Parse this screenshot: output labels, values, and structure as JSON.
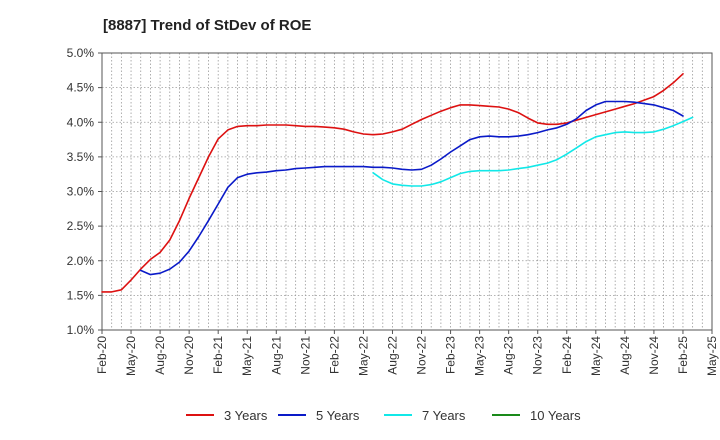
{
  "chart_data": {
    "type": "line",
    "title": "[8887]  Trend of StDev of ROE",
    "xlabel": "",
    "ylabel": "",
    "ylim": [
      1.0,
      5.0
    ],
    "y_ticks": [
      "1.0%",
      "1.5%",
      "2.0%",
      "2.5%",
      "3.0%",
      "3.5%",
      "4.0%",
      "4.5%",
      "5.0%"
    ],
    "y_tick_values": [
      1.0,
      1.5,
      2.0,
      2.5,
      3.0,
      3.5,
      4.0,
      4.5,
      5.0
    ],
    "x_ticks": [
      "Feb-20",
      "May-20",
      "Aug-20",
      "Nov-20",
      "Feb-21",
      "May-21",
      "Aug-21",
      "Nov-21",
      "Feb-22",
      "May-22",
      "Aug-22",
      "Nov-22",
      "Feb-23",
      "May-23",
      "Aug-23",
      "Nov-23",
      "Feb-24",
      "May-24",
      "Aug-24",
      "Nov-24",
      "Feb-25",
      "May-25"
    ],
    "grid": true,
    "legend_position": "bottom",
    "series": [
      {
        "name": "3 Years",
        "color": "#dd1111",
        "points": [
          [
            0,
            1.55
          ],
          [
            1,
            1.55
          ],
          [
            2,
            1.58
          ],
          [
            3,
            1.72
          ],
          [
            4,
            1.88
          ],
          [
            5,
            2.02
          ],
          [
            6,
            2.12
          ],
          [
            7,
            2.3
          ],
          [
            8,
            2.58
          ],
          [
            9,
            2.9
          ],
          [
            10,
            3.2
          ],
          [
            11,
            3.5
          ],
          [
            12,
            3.76
          ],
          [
            13,
            3.89
          ],
          [
            14,
            3.94
          ],
          [
            15,
            3.95
          ],
          [
            16,
            3.95
          ],
          [
            17,
            3.96
          ],
          [
            18,
            3.96
          ],
          [
            19,
            3.96
          ],
          [
            20,
            3.95
          ],
          [
            21,
            3.94
          ],
          [
            22,
            3.94
          ],
          [
            23,
            3.93
          ],
          [
            24,
            3.92
          ],
          [
            25,
            3.9
          ],
          [
            26,
            3.86
          ],
          [
            27,
            3.83
          ],
          [
            28,
            3.82
          ],
          [
            29,
            3.83
          ],
          [
            30,
            3.86
          ],
          [
            31,
            3.9
          ],
          [
            32,
            3.97
          ],
          [
            33,
            4.04
          ],
          [
            34,
            4.1
          ],
          [
            35,
            4.16
          ],
          [
            36,
            4.21
          ],
          [
            37,
            4.25
          ],
          [
            38,
            4.25
          ],
          [
            39,
            4.24
          ],
          [
            40,
            4.23
          ],
          [
            41,
            4.22
          ],
          [
            42,
            4.19
          ],
          [
            43,
            4.14
          ],
          [
            44,
            4.06
          ],
          [
            45,
            3.99
          ],
          [
            46,
            3.97
          ],
          [
            47,
            3.97
          ],
          [
            48,
            3.99
          ],
          [
            49,
            4.03
          ],
          [
            50,
            4.07
          ],
          [
            51,
            4.11
          ],
          [
            52,
            4.15
          ],
          [
            53,
            4.19
          ],
          [
            54,
            4.23
          ],
          [
            55,
            4.27
          ],
          [
            56,
            4.32
          ],
          [
            57,
            4.37
          ],
          [
            58,
            4.46
          ],
          [
            59,
            4.57
          ],
          [
            60,
            4.7
          ]
        ]
      },
      {
        "name": "5 Years",
        "color": "#0a1ac8",
        "points": [
          [
            4,
            1.86
          ],
          [
            5,
            1.8
          ],
          [
            6,
            1.82
          ],
          [
            7,
            1.88
          ],
          [
            8,
            1.98
          ],
          [
            9,
            2.14
          ],
          [
            10,
            2.35
          ],
          [
            11,
            2.58
          ],
          [
            12,
            2.82
          ],
          [
            13,
            3.06
          ],
          [
            14,
            3.2
          ],
          [
            15,
            3.25
          ],
          [
            16,
            3.27
          ],
          [
            17,
            3.28
          ],
          [
            18,
            3.3
          ],
          [
            19,
            3.31
          ],
          [
            20,
            3.33
          ],
          [
            21,
            3.34
          ],
          [
            22,
            3.35
          ],
          [
            23,
            3.36
          ],
          [
            24,
            3.36
          ],
          [
            25,
            3.36
          ],
          [
            26,
            3.36
          ],
          [
            27,
            3.36
          ],
          [
            28,
            3.35
          ],
          [
            29,
            3.35
          ],
          [
            30,
            3.34
          ],
          [
            31,
            3.32
          ],
          [
            32,
            3.31
          ],
          [
            33,
            3.32
          ],
          [
            34,
            3.38
          ],
          [
            35,
            3.47
          ],
          [
            36,
            3.57
          ],
          [
            37,
            3.66
          ],
          [
            38,
            3.75
          ],
          [
            39,
            3.79
          ],
          [
            40,
            3.8
          ],
          [
            41,
            3.79
          ],
          [
            42,
            3.79
          ],
          [
            43,
            3.8
          ],
          [
            44,
            3.82
          ],
          [
            45,
            3.85
          ],
          [
            46,
            3.89
          ],
          [
            47,
            3.92
          ],
          [
            48,
            3.97
          ],
          [
            49,
            4.05
          ],
          [
            50,
            4.17
          ],
          [
            51,
            4.25
          ],
          [
            52,
            4.3
          ],
          [
            53,
            4.3
          ],
          [
            54,
            4.3
          ],
          [
            55,
            4.29
          ],
          [
            56,
            4.27
          ],
          [
            57,
            4.25
          ],
          [
            58,
            4.21
          ],
          [
            59,
            4.17
          ],
          [
            60,
            4.09
          ]
        ]
      },
      {
        "name": "7 Years",
        "color": "#11e8e8",
        "points": [
          [
            28,
            3.27
          ],
          [
            29,
            3.17
          ],
          [
            30,
            3.11
          ],
          [
            31,
            3.09
          ],
          [
            32,
            3.08
          ],
          [
            33,
            3.08
          ],
          [
            34,
            3.1
          ],
          [
            35,
            3.14
          ],
          [
            36,
            3.2
          ],
          [
            37,
            3.26
          ],
          [
            38,
            3.29
          ],
          [
            39,
            3.3
          ],
          [
            40,
            3.3
          ],
          [
            41,
            3.3
          ],
          [
            42,
            3.31
          ],
          [
            43,
            3.33
          ],
          [
            44,
            3.35
          ],
          [
            45,
            3.38
          ],
          [
            46,
            3.41
          ],
          [
            47,
            3.46
          ],
          [
            48,
            3.54
          ],
          [
            49,
            3.63
          ],
          [
            50,
            3.72
          ],
          [
            51,
            3.79
          ],
          [
            52,
            3.82
          ],
          [
            53,
            3.85
          ],
          [
            54,
            3.86
          ],
          [
            55,
            3.85
          ],
          [
            56,
            3.85
          ],
          [
            57,
            3.86
          ],
          [
            58,
            3.9
          ],
          [
            59,
            3.95
          ],
          [
            60,
            4.01
          ],
          [
            61,
            4.07
          ]
        ]
      },
      {
        "name": "10 Years",
        "color": "#1a8a1a",
        "points": []
      }
    ]
  }
}
